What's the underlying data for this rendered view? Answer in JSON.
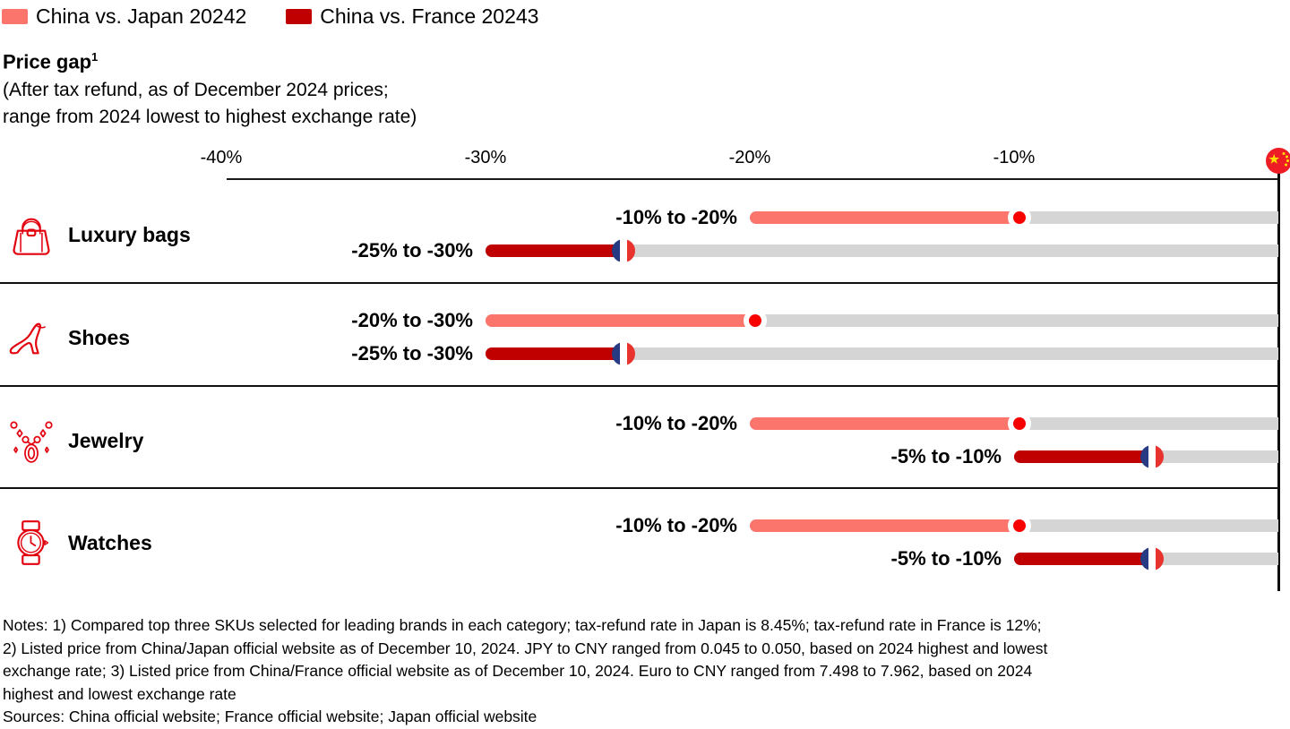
{
  "legend": [
    {
      "label": "China vs. Japan 20242",
      "color": "#FB756D",
      "name": "japan-series"
    },
    {
      "label": "China vs. France 20243",
      "color": "#C00000",
      "name": "france-series"
    }
  ],
  "header": {
    "title": "Price gap",
    "title_footnote": "1",
    "subtitle_lines": [
      "(After tax refund, as of December 2024 prices;",
      "range from 2024 lowest to highest exchange rate)"
    ]
  },
  "chart_data": {
    "type": "bar",
    "title": "Price gap",
    "subtitle": "(After tax refund, as of December 2024 prices; range from 2024 lowest to highest exchange rate)",
    "unit": "%",
    "axis": {
      "tick_labels": [
        "-40%",
        "-30%",
        "-20%",
        "-10%"
      ],
      "tick_values": [
        -40,
        -30,
        -20,
        -10
      ],
      "range": [
        -40,
        0
      ],
      "zero_marker": "china-flag"
    },
    "categories": [
      "Luxury bags",
      "Shoes",
      "Jewelry",
      "Watches"
    ],
    "rows": [
      {
        "category": "Luxury bags",
        "icon": "handbag-icon",
        "japan": {
          "label": "-10% to -20%",
          "from": -20,
          "to": -10,
          "marker": "japan-flag"
        },
        "france": {
          "label": "-25% to -30%",
          "from": -30,
          "to": -25,
          "marker": "france-flag"
        }
      },
      {
        "category": "Shoes",
        "icon": "high-heel-icon",
        "japan": {
          "label": "-20% to -30%",
          "from": -30,
          "to": -20,
          "marker": "japan-flag"
        },
        "france": {
          "label": "-25% to -30%",
          "from": -30,
          "to": -25,
          "marker": "france-flag"
        }
      },
      {
        "category": "Jewelry",
        "icon": "necklace-icon",
        "japan": {
          "label": "-10% to -20%",
          "from": -20,
          "to": -10,
          "marker": "japan-flag"
        },
        "france": {
          "label": "-5% to -10%",
          "from": -10,
          "to": -5,
          "marker": "france-flag"
        }
      },
      {
        "category": "Watches",
        "icon": "watch-icon",
        "japan": {
          "label": "-10% to -20%",
          "from": -20,
          "to": -10,
          "marker": "japan-flag"
        },
        "france": {
          "label": "-5% to -10%",
          "from": -10,
          "to": -5,
          "marker": "france-flag"
        }
      }
    ]
  },
  "colors": {
    "japan_bar": "#FB756D",
    "france_bar": "#C00000",
    "track_gray": "#D5D5D5",
    "icon_red": "#E2000F",
    "japan_dot": "#F80000",
    "china_flag_red": "#EE1C25",
    "china_flag_yellow": "#FFDE00",
    "france_blue": "#273A82",
    "france_red": "#E8322E"
  },
  "notes_lines": [
    "Notes: 1) Compared top three SKUs selected for leading brands in each category; tax-refund rate in Japan is 8.45%; tax-refund rate in France is 12%;",
    "2) Listed price from China/Japan official website as of December 10, 2024. JPY to CNY ranged from 0.045 to 0.050, based on 2024 highest and lowest",
    "exchange rate; 3) Listed price from China/France official website as of December 10, 2024. Euro to CNY ranged from 7.498 to 7.962, based on 2024",
    "highest and lowest exchange rate",
    "Sources: China official website; France official website; Japan official website"
  ]
}
